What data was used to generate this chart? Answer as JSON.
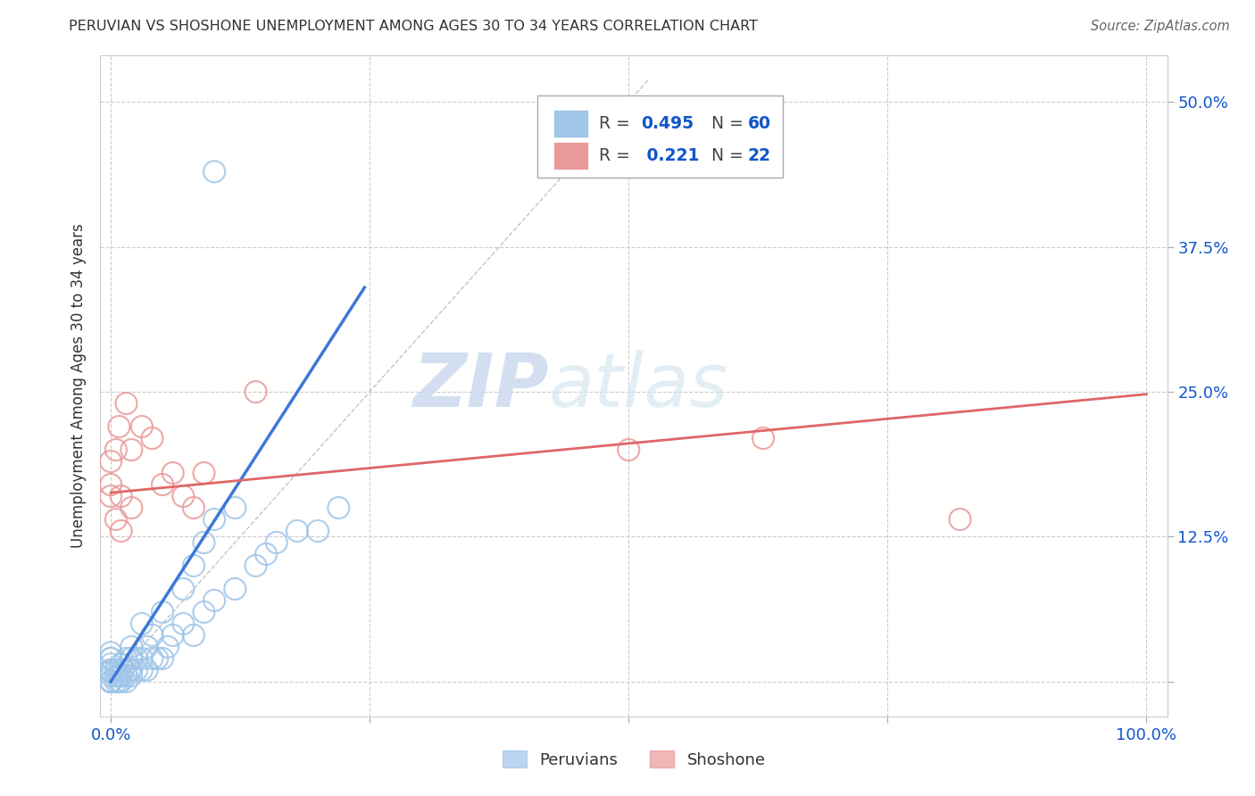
{
  "title": "PERUVIAN VS SHOSHONE UNEMPLOYMENT AMONG AGES 30 TO 34 YEARS CORRELATION CHART",
  "source": "Source: ZipAtlas.com",
  "ylabel": "Unemployment Among Ages 30 to 34 years",
  "xlim": [
    -0.01,
    1.02
  ],
  "ylim": [
    -0.03,
    0.54
  ],
  "xticks": [
    0.0,
    0.25,
    0.5,
    0.75,
    1.0
  ],
  "xtick_labels": [
    "0.0%",
    "",
    "",
    "",
    "100.0%"
  ],
  "yticks": [
    0.0,
    0.125,
    0.25,
    0.375,
    0.5
  ],
  "ytick_labels_left": [
    "",
    "",
    "",
    "",
    ""
  ],
  "ytick_labels_right": [
    "",
    "12.5%",
    "25.0%",
    "37.5%",
    "50.0%"
  ],
  "blue_color": "#9fc5e8",
  "pink_color": "#ea9999",
  "blue_line_color": "#3c78d8",
  "pink_line_color": "#e06666",
  "legend_text_color": "#1155cc",
  "grid_color": "#cccccc",
  "bg_color": "#ffffff",
  "peruvian_x": [
    0.0,
    0.0,
    0.0,
    0.0,
    0.0,
    0.0,
    0.0,
    0.0,
    0.0,
    0.0,
    0.0,
    0.0,
    0.005,
    0.005,
    0.005,
    0.008,
    0.008,
    0.01,
    0.01,
    0.01,
    0.012,
    0.015,
    0.015,
    0.015,
    0.018,
    0.02,
    0.02,
    0.02,
    0.02,
    0.025,
    0.025,
    0.03,
    0.03,
    0.03,
    0.035,
    0.035,
    0.04,
    0.04,
    0.045,
    0.05,
    0.05,
    0.055,
    0.06,
    0.07,
    0.07,
    0.08,
    0.08,
    0.09,
    0.09,
    0.1,
    0.1,
    0.12,
    0.12,
    0.14,
    0.15,
    0.16,
    0.18,
    0.2,
    0.22,
    0.1
  ],
  "peruvian_y": [
    0.0,
    0.0,
    0.0,
    0.0,
    0.005,
    0.008,
    0.01,
    0.01,
    0.015,
    0.02,
    0.02,
    0.025,
    0.0,
    0.005,
    0.01,
    0.0,
    0.005,
    0.0,
    0.005,
    0.015,
    0.01,
    0.0,
    0.005,
    0.02,
    0.01,
    0.005,
    0.01,
    0.02,
    0.03,
    0.01,
    0.02,
    0.01,
    0.02,
    0.05,
    0.01,
    0.03,
    0.02,
    0.04,
    0.02,
    0.02,
    0.06,
    0.03,
    0.04,
    0.05,
    0.08,
    0.04,
    0.1,
    0.06,
    0.12,
    0.07,
    0.14,
    0.08,
    0.15,
    0.1,
    0.11,
    0.12,
    0.13,
    0.13,
    0.15,
    0.44
  ],
  "shoshone_x": [
    0.0,
    0.0,
    0.0,
    0.005,
    0.005,
    0.008,
    0.01,
    0.01,
    0.015,
    0.02,
    0.02,
    0.03,
    0.04,
    0.05,
    0.06,
    0.07,
    0.08,
    0.09,
    0.5,
    0.63,
    0.82,
    0.14
  ],
  "shoshone_y": [
    0.16,
    0.17,
    0.19,
    0.14,
    0.2,
    0.22,
    0.13,
    0.16,
    0.24,
    0.15,
    0.2,
    0.22,
    0.21,
    0.17,
    0.18,
    0.16,
    0.15,
    0.18,
    0.2,
    0.21,
    0.14,
    0.25
  ],
  "blue_line_x": [
    0.0,
    0.245
  ],
  "blue_line_y": [
    0.0,
    0.34
  ],
  "pink_line_x": [
    0.0,
    1.0
  ],
  "pink_line_y": [
    0.163,
    0.248
  ],
  "diag_line_x": [
    0.0,
    0.52
  ],
  "diag_line_y": [
    0.0,
    0.52
  ],
  "watermark_zip": "ZIP",
  "watermark_atlas": "atlas"
}
